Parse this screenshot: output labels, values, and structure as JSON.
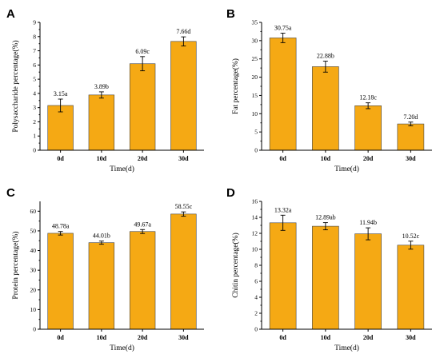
{
  "colors": {
    "bar": "#F5A914",
    "axis": "#000000"
  },
  "chart_data": [
    {
      "panel": "A",
      "type": "bar",
      "categories": [
        "0d",
        "10d",
        "20d",
        "30d"
      ],
      "values": [
        3.15,
        3.89,
        6.09,
        7.66
      ],
      "errors": [
        0.45,
        0.22,
        0.5,
        0.32
      ],
      "data_labels": [
        "3.15a",
        "3.89b",
        "6.09c",
        "7.66d"
      ],
      "xlabel": "Time(d)",
      "ylabel": "Polysaccharide percentage(%)",
      "ylim": [
        0,
        9
      ],
      "yticks": [
        0,
        1,
        2,
        3,
        4,
        5,
        6,
        7,
        8,
        9
      ],
      "grid": false
    },
    {
      "panel": "B",
      "type": "bar",
      "categories": [
        "0d",
        "10d",
        "20d",
        "30d"
      ],
      "values": [
        30.75,
        22.88,
        12.18,
        7.2
      ],
      "errors": [
        1.3,
        1.5,
        0.8,
        0.5
      ],
      "data_labels": [
        "30.75a",
        "22.88b",
        "12.18c",
        "7.20d"
      ],
      "xlabel": "Time(d)",
      "ylabel": "Fat percentage(%)",
      "ylim": [
        0,
        35
      ],
      "yticks": [
        0,
        5,
        10,
        15,
        20,
        25,
        30,
        35
      ],
      "grid": false
    },
    {
      "panel": "C",
      "type": "bar",
      "categories": [
        "0d",
        "10d",
        "20d",
        "30d"
      ],
      "values": [
        48.78,
        44.01,
        49.67,
        58.55
      ],
      "errors": [
        0.9,
        0.8,
        1.0,
        1.1
      ],
      "data_labels": [
        "48.78a",
        "44.01b",
        "49.67a",
        "58.55c"
      ],
      "xlabel": "Time(d)",
      "ylabel": "Protein percentage(%)",
      "ylim": [
        0,
        65
      ],
      "yticks": [
        0,
        10,
        20,
        30,
        40,
        50,
        60
      ],
      "grid": false
    },
    {
      "panel": "D",
      "type": "bar",
      "categories": [
        "0d",
        "10d",
        "20d",
        "30d"
      ],
      "values": [
        13.32,
        12.89,
        11.94,
        10.52
      ],
      "errors": [
        0.95,
        0.45,
        0.75,
        0.5
      ],
      "data_labels": [
        "13.32a",
        "12.89ab",
        "11.94b",
        "10.52c"
      ],
      "xlabel": "Time(d)",
      "ylabel": "Chitin percentage(%)",
      "ylim": [
        0,
        16
      ],
      "yticks": [
        0,
        2,
        4,
        6,
        8,
        10,
        12,
        14,
        16
      ],
      "grid": false
    }
  ]
}
